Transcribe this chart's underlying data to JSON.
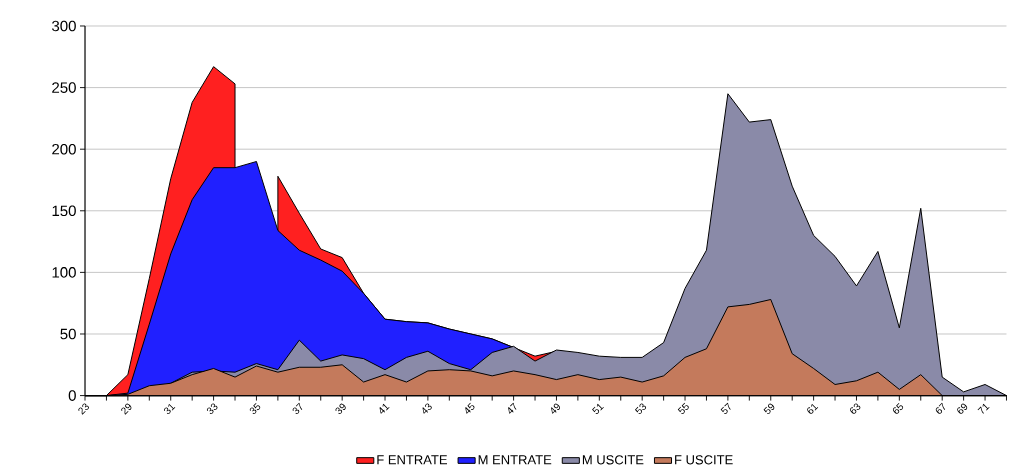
{
  "chart_data": {
    "type": "area",
    "categories": [
      "23",
      null,
      "29",
      null,
      "31",
      null,
      "33",
      null,
      "35",
      null,
      "37",
      null,
      "39",
      null,
      "41",
      null,
      "43",
      null,
      "45",
      null,
      "47",
      null,
      "49",
      null,
      "51",
      null,
      "53",
      null,
      "55",
      null,
      "57",
      null,
      "59",
      null,
      "61",
      null,
      "63",
      null,
      "65",
      null,
      "67",
      "69",
      "71",
      null
    ],
    "series": [
      {
        "name": "F ENTRATE",
        "color": "#ff2020",
        "values": [
          0,
          0,
          17,
          95,
          176,
          238,
          267,
          253,
          null,
          178,
          148,
          119,
          112,
          83,
          62,
          60,
          59,
          54,
          50,
          46,
          39,
          32,
          36,
          null,
          null,
          null,
          null,
          null,
          null,
          null,
          null,
          null,
          null,
          null,
          null,
          null,
          null,
          null,
          null,
          null,
          null,
          null,
          null,
          null
        ]
      },
      {
        "name": "M ENTRATE",
        "color": "#2020ff",
        "values": [
          0,
          0,
          2,
          58,
          115,
          159,
          185,
          185,
          190,
          134,
          118,
          110,
          101,
          83,
          62,
          60,
          59,
          54,
          50,
          46,
          39,
          null,
          null,
          null,
          null,
          null,
          null,
          null,
          null,
          null,
          null,
          null,
          null,
          null,
          null,
          null,
          null,
          null,
          null,
          null,
          null,
          null,
          null,
          null
        ]
      },
      {
        "name": "M USCITE",
        "color": "#8a8aa8",
        "values": [
          0,
          0,
          0,
          5,
          10,
          19,
          20,
          19,
          26,
          21,
          45,
          28,
          33,
          30,
          21,
          31,
          36,
          26,
          21,
          35,
          40,
          28,
          37,
          35,
          32,
          31,
          31,
          43,
          87,
          118,
          245,
          222,
          224,
          170,
          130,
          113,
          89,
          117,
          55,
          152,
          15,
          3,
          9,
          0
        ]
      },
      {
        "name": "F USCITE",
        "color": "#c47a5c",
        "values": [
          0,
          0,
          1,
          8,
          10,
          17,
          22,
          15,
          24,
          19,
          23,
          23,
          25,
          11,
          17,
          11,
          20,
          21,
          20,
          16,
          20,
          17,
          13,
          17,
          13,
          15,
          11,
          16,
          31,
          38,
          72,
          74,
          78,
          34,
          22,
          9,
          12,
          19,
          5,
          17,
          0,
          0,
          0,
          0
        ]
      }
    ],
    "ylim": [
      0,
      300
    ],
    "yticks": [
      0,
      50,
      100,
      150,
      200,
      250,
      300
    ],
    "grid": "y",
    "legend": "bottom"
  }
}
